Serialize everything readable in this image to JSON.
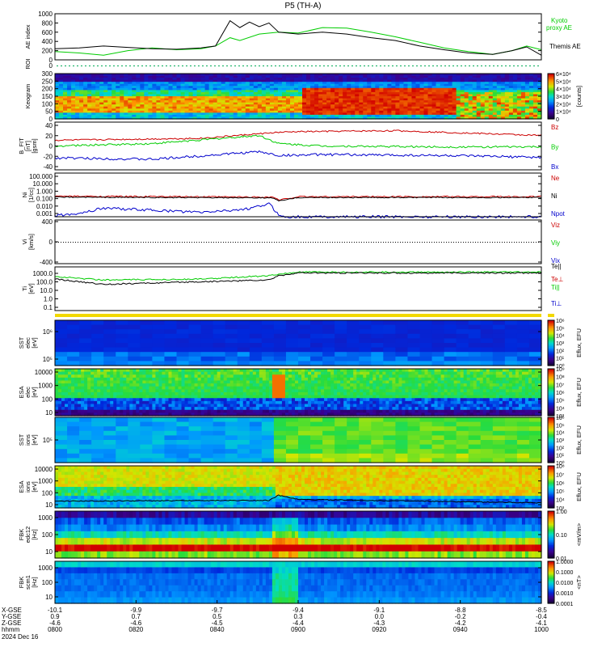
{
  "title": "P5 (TH-A)",
  "chart_data": [
    {
      "type": "line",
      "panel": "ae",
      "ylabel": "AE index",
      "ylim": [
        0,
        1000
      ],
      "yticks": [
        "1000",
        "800",
        "600",
        "400",
        "200",
        "0"
      ],
      "series": [
        {
          "name": "Kyoto proxy AE",
          "color": "#00cc00",
          "x": [
            0,
            0.05,
            0.1,
            0.15,
            0.2,
            0.25,
            0.3,
            0.33,
            0.36,
            0.38,
            0.42,
            0.46,
            0.5,
            0.55,
            0.6,
            0.65,
            0.7,
            0.75,
            0.8,
            0.85,
            0.9,
            0.94,
            0.97,
            1.0
          ],
          "values": [
            180,
            150,
            100,
            200,
            260,
            220,
            240,
            300,
            480,
            420,
            560,
            600,
            580,
            700,
            690,
            600,
            500,
            380,
            260,
            180,
            120,
            200,
            300,
            220
          ]
        },
        {
          "name": "Themis AE",
          "color": "#000000",
          "x": [
            0,
            0.05,
            0.1,
            0.15,
            0.2,
            0.25,
            0.3,
            0.33,
            0.36,
            0.38,
            0.4,
            0.42,
            0.44,
            0.46,
            0.5,
            0.55,
            0.6,
            0.65,
            0.7,
            0.75,
            0.8,
            0.85,
            0.9,
            0.94,
            0.97,
            1.0
          ],
          "values": [
            240,
            260,
            300,
            270,
            240,
            230,
            260,
            300,
            850,
            700,
            820,
            720,
            800,
            600,
            560,
            600,
            560,
            480,
            420,
            300,
            220,
            150,
            120,
            200,
            280,
            100
          ]
        }
      ],
      "legend": [
        "Kyoto",
        "proxy AE",
        "Themis AE"
      ]
    },
    {
      "type": "line",
      "panel": "roi",
      "ylabel": "ROI",
      "ytick": "0"
    },
    {
      "type": "heatmap",
      "panel": "keogram",
      "ylabel": "Keogram",
      "yticks": [
        "300",
        "250",
        "200",
        "150",
        "100",
        "50",
        "0"
      ],
      "colorbar_ticks": [
        "6×10⁴",
        "5×10⁴",
        "4×10⁴",
        "3×10⁴",
        "2×10⁴",
        "1×10⁴",
        "0"
      ],
      "colorbar_label": "[counts]"
    },
    {
      "type": "line",
      "panel": "bfield",
      "ylabel": "B_FIT\n[nT]\n[gsm]",
      "yticks": [
        "40",
        "20",
        "0",
        "-20",
        "-40"
      ],
      "series": [
        {
          "name": "Bz",
          "color": "#cc0000"
        },
        {
          "name": "By",
          "color": "#00cc00"
        },
        {
          "name": "Bx",
          "color": "#0000cc"
        }
      ]
    },
    {
      "type": "line",
      "panel": "density",
      "ylabel": "Ni\n[1/cc]",
      "scale": "log",
      "yticks": [
        "100.000",
        "10.000",
        "1.000",
        "0.100",
        "0.010",
        "0.001"
      ],
      "series": [
        {
          "name": "Ne",
          "color": "#cc0000"
        },
        {
          "name": "Ni",
          "color": "#000000"
        },
        {
          "name": "Npot",
          "color": "#0000cc"
        }
      ]
    },
    {
      "type": "line",
      "panel": "velocity",
      "ylabel": "Vi\n[km/s]",
      "yticks": [
        "400",
        "0",
        "-400"
      ],
      "series": [
        {
          "name": "Viz",
          "color": "#cc0000"
        },
        {
          "name": "Viy",
          "color": "#00cc00"
        },
        {
          "name": "Vix",
          "color": "#0000cc"
        }
      ]
    },
    {
      "type": "line",
      "panel": "temperature",
      "ylabel": "Ti\n[eV]",
      "scale": "log",
      "yticks": [
        "1000.0",
        "100.0",
        "10.0",
        "1.0",
        "0.1"
      ],
      "series": [
        {
          "name": "Te||",
          "color": "#000000"
        },
        {
          "name": "Te⊥",
          "color": "#cc0000"
        },
        {
          "name": "Ti||",
          "color": "#00cc00"
        },
        {
          "name": "Ti⊥",
          "color": "#0000cc"
        }
      ]
    },
    {
      "type": "heatmap",
      "panel": "sst_electron",
      "ylabel": "SST\nelec\n[eV]",
      "yticks": [
        "10⁶",
        "10⁵"
      ],
      "colorbar_ticks": [
        "10⁶",
        "10⁵",
        "10⁴",
        "10³",
        "10²",
        "10¹",
        "10⁰"
      ],
      "colorbar_label": "Eflux, EFU"
    },
    {
      "type": "heatmap",
      "panel": "esa_electron",
      "ylabel": "ESA\nelec\n[eV]",
      "yticks": [
        "10000",
        "1000",
        "100",
        "10"
      ],
      "colorbar_ticks": [
        "10⁹",
        "10⁸",
        "10⁷",
        "10⁶",
        "10⁵",
        "10⁴",
        "10³"
      ],
      "colorbar_label": "Eflux, EFU"
    },
    {
      "type": "heatmap",
      "panel": "sst_ion",
      "ylabel": "SST\nions\n[eV]",
      "yticks": [
        "10⁵"
      ],
      "colorbar_ticks": [
        "10⁶",
        "10⁵",
        "10⁴",
        "10³",
        "10²",
        "10¹",
        "10⁰"
      ],
      "colorbar_label": "Eflux, EFU"
    },
    {
      "type": "heatmap",
      "panel": "esa_ion",
      "ylabel": "ESA\nions\n[eV]",
      "yticks": [
        "10000",
        "1000",
        "100",
        "10"
      ],
      "colorbar_ticks": [
        "10⁸",
        "10⁷",
        "10⁶",
        "10⁵",
        "10⁴",
        "10³"
      ],
      "colorbar_label": "Eflux, EFU"
    },
    {
      "type": "heatmap",
      "panel": "fbk_e",
      "ylabel": "FBK\nedc12\n[Hz]",
      "yticks": [
        "1000",
        "100",
        "10"
      ],
      "colorbar_ticks": [
        "1.00",
        "0.10",
        "0.01"
      ],
      "colorbar_label": "<mV/m>"
    },
    {
      "type": "heatmap",
      "panel": "fbk_b",
      "ylabel": "FBK\nscm1\n[Hz]",
      "yticks": [
        "1000",
        "100",
        "10"
      ],
      "colorbar_ticks": [
        "1.0000",
        "0.1000",
        "0.0100",
        "0.0010",
        "0.0001"
      ],
      "colorbar_label": "<nT>"
    }
  ],
  "xaxis": {
    "row_labels": [
      "X-GSE",
      "Y-GSE",
      "Z-GSE",
      "hhmm",
      "2024 Dec 16"
    ],
    "ticks": [
      {
        "x": "-10.1",
        "y": "0.9",
        "z": "-4.6",
        "t": "0800"
      },
      {
        "x": "-9.9",
        "y": "0.7",
        "z": "-4.6",
        "t": "0820"
      },
      {
        "x": "-9.7",
        "y": "0.5",
        "z": "-4.5",
        "t": "0840"
      },
      {
        "x": "-9.4",
        "y": "0.3",
        "z": "-4.4",
        "t": "0900"
      },
      {
        "x": "-9.1",
        "y": "0.0",
        "z": "-4.3",
        "t": "0920"
      },
      {
        "x": "-8.8",
        "y": "-0.2",
        "z": "-4.2",
        "t": "0940"
      },
      {
        "x": "-8.5",
        "y": "-0.4",
        "z": "-4.1",
        "t": "1000"
      }
    ]
  }
}
